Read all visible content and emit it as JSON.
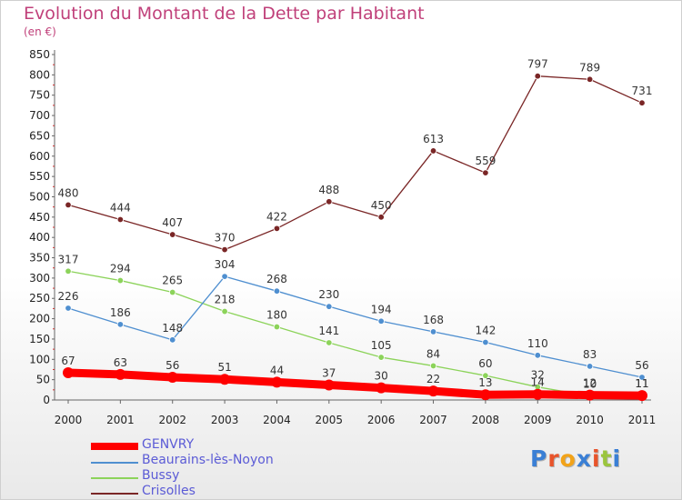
{
  "chart_data": {
    "type": "line",
    "title": "Evolution du Montant de la Dette par Habitant",
    "subtitle": "(en €)",
    "x": [
      "2000",
      "2001",
      "2002",
      "2003",
      "2004",
      "2005",
      "2006",
      "2007",
      "2008",
      "2009",
      "2010",
      "2011"
    ],
    "ylim": [
      0,
      850
    ],
    "yticks": [
      0,
      50,
      100,
      150,
      200,
      250,
      300,
      350,
      400,
      450,
      500,
      550,
      600,
      650,
      700,
      750,
      800,
      850
    ],
    "grid": false,
    "legend_position": "bottom-left",
    "series": [
      {
        "name": "GENVRY",
        "color": "#ff0000",
        "values": [
          67,
          63,
          56,
          51,
          44,
          37,
          30,
          22,
          13,
          14,
          12,
          11
        ]
      },
      {
        "name": "Beaurains-lès-Noyon",
        "color": "#4f8fd0",
        "values": [
          226,
          186,
          148,
          304,
          268,
          230,
          194,
          168,
          142,
          110,
          83,
          56
        ]
      },
      {
        "name": "Bussy",
        "color": "#8cd35a",
        "values": [
          317,
          294,
          265,
          218,
          180,
          141,
          105,
          84,
          60,
          32,
          10,
          11
        ]
      },
      {
        "name": "Crisolles",
        "color": "#7a2626",
        "values": [
          480,
          444,
          407,
          370,
          422,
          488,
          450,
          613,
          559,
          797,
          789,
          731
        ]
      }
    ]
  },
  "logo": {
    "letters": [
      "P",
      "r",
      "o",
      "x",
      "i",
      "t",
      "i"
    ],
    "colors": [
      "#3a7fd5",
      "#e8542b",
      "#f2a319",
      "#3a7fd5",
      "#e8542b",
      "#9bc53d",
      "#3a7fd5"
    ]
  }
}
